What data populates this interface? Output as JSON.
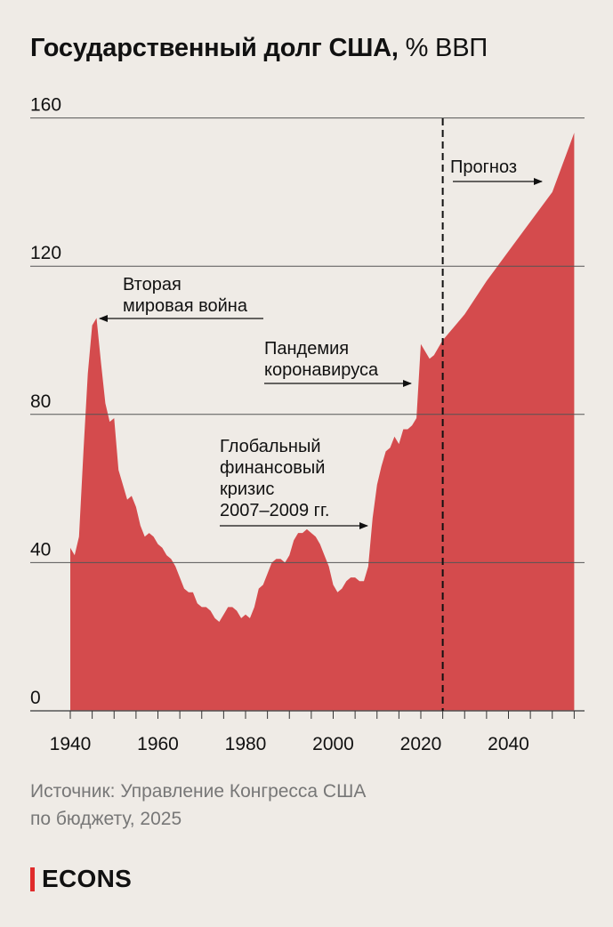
{
  "title": {
    "bold": "Государственный долг США,",
    "light": "% ВВП"
  },
  "source": {
    "line1": "Источник: Управление Конгресса США",
    "line2": "по бюджету, 2025"
  },
  "logo": {
    "text": "ECONS"
  },
  "colors": {
    "area": "#d44b4d",
    "background": "#efebe6",
    "gridline": "#555555",
    "accent": "#e02b2b",
    "source_text": "#777777"
  },
  "chart_data": {
    "type": "area",
    "title": "Государственный долг США, % ВВП",
    "xlabel": "",
    "ylabel": "",
    "xlim": [
      1939,
      2057
    ],
    "ylim": [
      0,
      160
    ],
    "y_ticks": [
      0,
      40,
      80,
      120,
      160
    ],
    "y_tick_labels": [
      "0",
      "40",
      "80",
      "120",
      "160"
    ],
    "x_tick_labels": [
      {
        "x": 1940,
        "label": "1940"
      },
      {
        "x": 1960,
        "label": "1960"
      },
      {
        "x": 1980,
        "label": "1980"
      },
      {
        "x": 2000,
        "label": "2000"
      },
      {
        "x": 2020,
        "label": "2020"
      },
      {
        "x": 2040,
        "label": "2040"
      }
    ],
    "grid": "horizontal",
    "forecast_start": 2025,
    "series": [
      {
        "values": [
          [
            1940,
            44
          ],
          [
            1941,
            42
          ],
          [
            1942,
            47
          ],
          [
            1943,
            70
          ],
          [
            1944,
            91
          ],
          [
            1945,
            104
          ],
          [
            1946,
            106
          ],
          [
            1947,
            94
          ],
          [
            1948,
            83
          ],
          [
            1949,
            78
          ],
          [
            1950,
            79
          ],
          [
            1951,
            65
          ],
          [
            1952,
            61
          ],
          [
            1953,
            57
          ],
          [
            1954,
            58
          ],
          [
            1955,
            55
          ],
          [
            1956,
            50
          ],
          [
            1957,
            47
          ],
          [
            1958,
            48
          ],
          [
            1959,
            47
          ],
          [
            1960,
            45
          ],
          [
            1961,
            44
          ],
          [
            1962,
            42
          ],
          [
            1963,
            41
          ],
          [
            1964,
            39
          ],
          [
            1965,
            36
          ],
          [
            1966,
            33
          ],
          [
            1967,
            32
          ],
          [
            1968,
            32
          ],
          [
            1969,
            29
          ],
          [
            1970,
            28
          ],
          [
            1971,
            28
          ],
          [
            1972,
            27
          ],
          [
            1973,
            25
          ],
          [
            1974,
            24
          ],
          [
            1975,
            26
          ],
          [
            1976,
            28
          ],
          [
            1977,
            28
          ],
          [
            1978,
            27
          ],
          [
            1979,
            25
          ],
          [
            1980,
            26
          ],
          [
            1981,
            25
          ],
          [
            1982,
            28
          ],
          [
            1983,
            33
          ],
          [
            1984,
            34
          ],
          [
            1985,
            37
          ],
          [
            1986,
            40
          ],
          [
            1987,
            41
          ],
          [
            1988,
            41
          ],
          [
            1989,
            40
          ],
          [
            1990,
            42
          ],
          [
            1991,
            46
          ],
          [
            1992,
            48
          ],
          [
            1993,
            48
          ],
          [
            1994,
            49
          ],
          [
            1995,
            48
          ],
          [
            1996,
            47
          ],
          [
            1997,
            45
          ],
          [
            1998,
            42
          ],
          [
            1999,
            39
          ],
          [
            2000,
            34
          ],
          [
            2001,
            32
          ],
          [
            2002,
            33
          ],
          [
            2003,
            35
          ],
          [
            2004,
            36
          ],
          [
            2005,
            36
          ],
          [
            2006,
            35
          ],
          [
            2007,
            35
          ],
          [
            2008,
            39
          ],
          [
            2009,
            52
          ],
          [
            2010,
            61
          ],
          [
            2011,
            66
          ],
          [
            2012,
            70
          ],
          [
            2013,
            71
          ],
          [
            2014,
            74
          ],
          [
            2015,
            72
          ],
          [
            2016,
            76
          ],
          [
            2017,
            76
          ],
          [
            2018,
            77
          ],
          [
            2019,
            79
          ],
          [
            2020,
            99
          ],
          [
            2021,
            97
          ],
          [
            2022,
            95
          ],
          [
            2023,
            96
          ],
          [
            2024,
            98
          ],
          [
            2025,
            100
          ],
          [
            2030,
            107
          ],
          [
            2035,
            116
          ],
          [
            2040,
            124
          ],
          [
            2045,
            132
          ],
          [
            2050,
            140
          ],
          [
            2055,
            156
          ]
        ]
      }
    ],
    "annotations": [
      {
        "lines": [
          "Вторая",
          "мировая война"
        ]
      },
      {
        "lines": [
          "Пандемия",
          "коронавируса"
        ]
      },
      {
        "lines": [
          "Глобальный",
          "финансовый",
          "кризис",
          "2007–2009 гг."
        ]
      },
      {
        "lines": [
          "Прогноз"
        ]
      }
    ]
  }
}
